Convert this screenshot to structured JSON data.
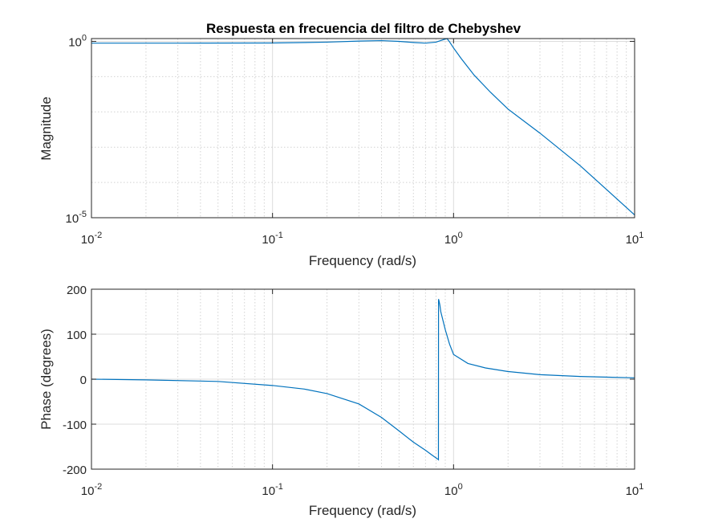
{
  "title": "Respuesta en frecuencia del filtro de Chebyshev",
  "chart_data": [
    {
      "type": "line",
      "scale": "loglog",
      "xlabel": "Frequency (rad/s)",
      "ylabel": "Magnitude",
      "xlim": [
        0.01,
        10
      ],
      "ylim": [
        1e-05,
        1.2
      ],
      "xticks": [
        {
          "base": "10",
          "exp": "-2"
        },
        {
          "base": "10",
          "exp": "-1"
        },
        {
          "base": "10",
          "exp": "0"
        },
        {
          "base": "10",
          "exp": "1"
        }
      ],
      "yticks": [
        {
          "value": 1e-05,
          "base": "10",
          "exp": "-5"
        },
        {
          "value": 1,
          "base": "10",
          "exp": "0"
        }
      ],
      "grid": true,
      "series": [
        {
          "color": "#0072bd",
          "x": [
            0.01,
            0.03,
            0.1,
            0.2,
            0.3,
            0.4,
            0.5,
            0.6,
            0.7,
            0.8,
            0.88,
            0.92,
            0.95,
            1.0,
            1.1,
            1.3,
            1.6,
            2,
            3,
            5,
            10
          ],
          "y": [
            0.89,
            0.89,
            0.9,
            0.95,
            1.02,
            1.05,
            1.0,
            0.93,
            0.89,
            0.95,
            1.12,
            1.2,
            0.97,
            0.65,
            0.33,
            0.11,
            0.036,
            0.012,
            0.0025,
            0.0003,
            1.2e-05
          ]
        }
      ]
    },
    {
      "type": "line",
      "scale": "semilogx",
      "xlabel": "Frequency (rad/s)",
      "ylabel": "Phase (degrees)",
      "xlim": [
        0.01,
        10
      ],
      "ylim": [
        -200,
        200
      ],
      "xticks": [
        {
          "base": "10",
          "exp": "-2"
        },
        {
          "base": "10",
          "exp": "-1"
        },
        {
          "base": "10",
          "exp": "0"
        },
        {
          "base": "10",
          "exp": "1"
        }
      ],
      "yticks": [
        {
          "value": -200,
          "label": "-200"
        },
        {
          "value": -100,
          "label": "-100"
        },
        {
          "value": 0,
          "label": "0"
        },
        {
          "value": 100,
          "label": "100"
        },
        {
          "value": 200,
          "label": "200"
        }
      ],
      "grid": true,
      "series": [
        {
          "color": "#0072bd",
          "x": [
            0.01,
            0.02,
            0.05,
            0.1,
            0.15,
            0.2,
            0.3,
            0.4,
            0.5,
            0.6,
            0.7,
            0.75,
            0.8,
            0.82,
            0.825,
            0.826,
            0.83,
            0.835,
            0.84,
            0.85,
            0.9,
            0.95,
            1.0,
            1.2,
            1.5,
            2,
            3,
            5,
            10
          ],
          "y": [
            0,
            -1.5,
            -5,
            -14,
            -22,
            -32,
            -55,
            -85,
            -115,
            -140,
            -158,
            -167,
            -175,
            -178,
            -179,
            178,
            175,
            170,
            165,
            150,
            110,
            78,
            55,
            35,
            25,
            17,
            10,
            6,
            3
          ]
        }
      ]
    }
  ]
}
